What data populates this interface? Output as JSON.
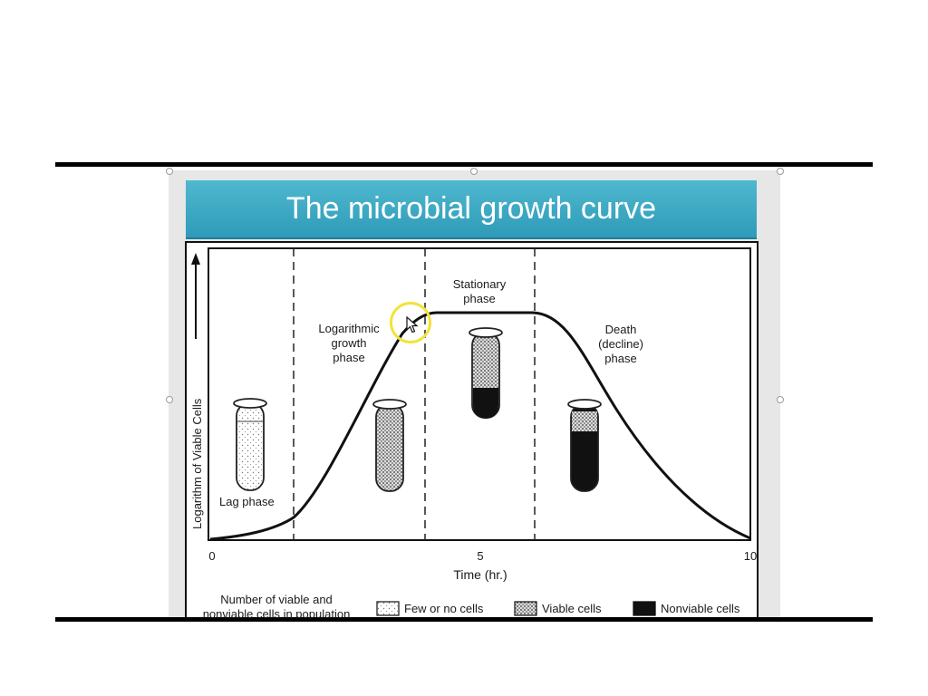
{
  "slide": {
    "title": "The microbial growth curve"
  },
  "figure": {
    "y_axis_label": "Logarithm of Viable Cells",
    "x_axis_label": "Time (hr.)",
    "x_ticks": [
      "0",
      "5",
      "10"
    ],
    "phases": [
      {
        "lines": [
          "Lag phase"
        ]
      },
      {
        "lines": [
          "Logarithmic",
          "growth",
          "phase"
        ]
      },
      {
        "lines": [
          "Stationary",
          "phase"
        ]
      },
      {
        "lines": [
          "Death",
          "(decline)",
          "phase"
        ]
      }
    ],
    "legend": {
      "title_lines": [
        "Number of viable and",
        "nonviable cells in population"
      ],
      "items": [
        {
          "label": "Few or no cells"
        },
        {
          "label": "Viable cells"
        },
        {
          "label": "Nonviable cells"
        }
      ]
    }
  },
  "colors": {
    "banner": "#3aa9c4",
    "rule": "#000000",
    "cursor_highlight": "#f2e33a"
  },
  "icons": {
    "cursor": "arrow-cursor-icon",
    "arrow": "up-arrow-icon"
  }
}
